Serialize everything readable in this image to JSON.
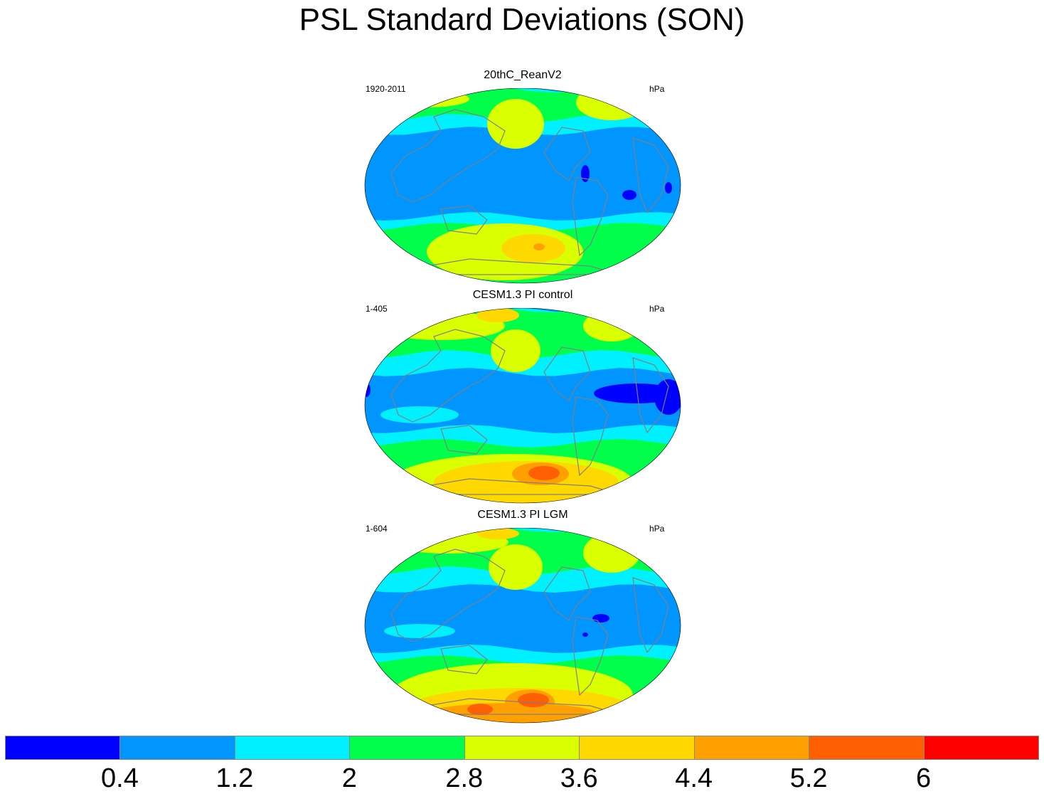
{
  "title": "PSL Standard Deviations (SON)",
  "panels": [
    {
      "title": "20thC_ReanV2",
      "years": "1920-2011",
      "units": "hPa"
    },
    {
      "title": "CESM1.3 PI control",
      "years": "1-405",
      "units": "hPa"
    },
    {
      "title": "CESM1.3 PI LGM",
      "years": "1-604",
      "units": "hPa"
    }
  ],
  "chart_data": {
    "type": "heatmap",
    "title": "PSL Standard Deviations (SON)",
    "projection": "global map",
    "units": "hPa",
    "colorbar": {
      "levels": [
        0.4,
        1.2,
        2,
        2.8,
        3.6,
        4.4,
        5.2,
        6
      ],
      "tick_labels": [
        "0.4",
        "1.2",
        "2",
        "2.8",
        "3.6",
        "4.4",
        "5.2",
        "6"
      ],
      "colors": [
        "#0000ff",
        "#0095ff",
        "#00f0ff",
        "#00ff4a",
        "#d9ff00",
        "#ffd800",
        "#ffa000",
        "#ff5f00",
        "#ff0000"
      ]
    },
    "colors": {
      "coast": "#808080"
    }
  }
}
